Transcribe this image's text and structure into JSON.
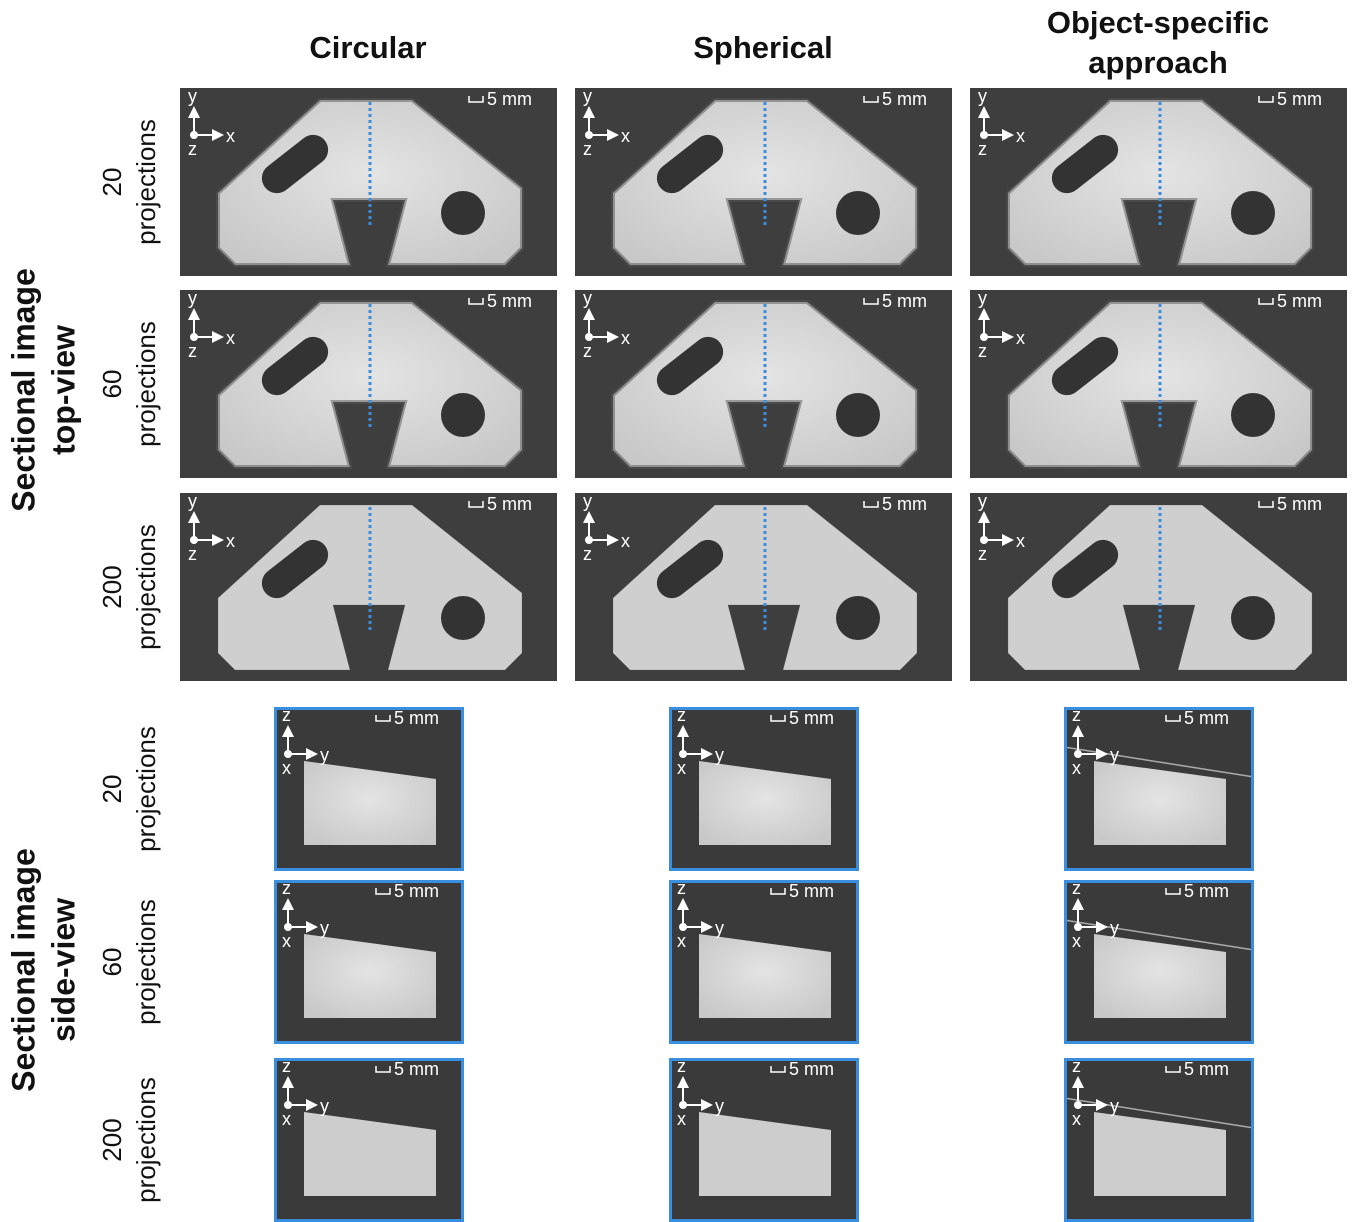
{
  "columns": [
    [
      "Circular"
    ],
    [
      "Spherical"
    ],
    [
      "Object-specific",
      "approach"
    ]
  ],
  "groups": [
    [
      "Sectional image",
      "top-view"
    ],
    [
      "Sectional image",
      "side-view"
    ]
  ],
  "rows": [
    [
      "20",
      "projections"
    ],
    [
      "60",
      "projections"
    ],
    [
      "200",
      "projections"
    ]
  ],
  "panel": {
    "scale": "5 mm",
    "top_axes": [
      "y",
      "x",
      "z"
    ],
    "side_axes": [
      "z",
      "y",
      "x"
    ]
  }
}
